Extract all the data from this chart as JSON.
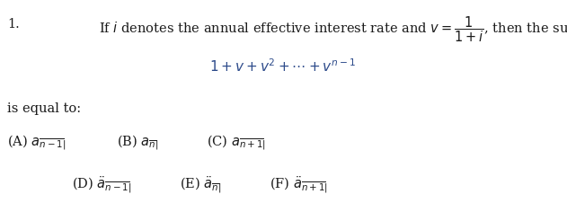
{
  "background_color": "#ffffff",
  "text_color": "#1a1a1a",
  "math_color": "#2c4a8a",
  "figsize": [
    6.31,
    2.36
  ],
  "dpi": 100,
  "fontsize": 10.5
}
